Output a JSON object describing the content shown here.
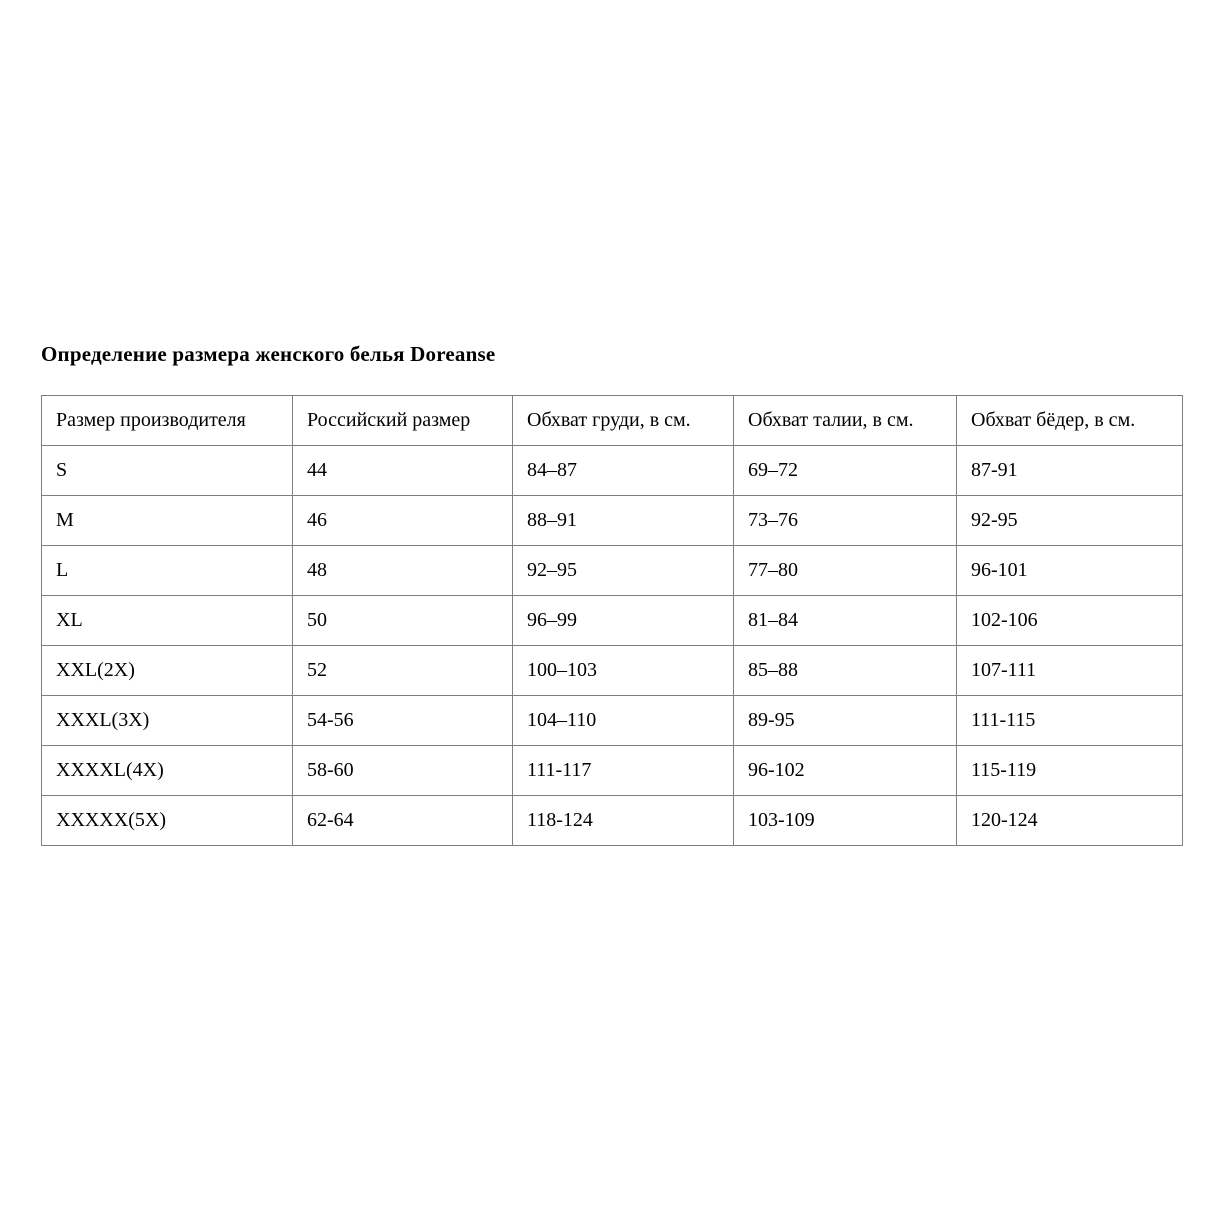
{
  "page": {
    "title": "Определение размера женского белья Doreanse"
  },
  "table": {
    "border_color": "#7f7f7f",
    "columns": [
      "Размер производителя",
      "Российский размер",
      "Обхват груди, в см.",
      "Обхват талии, в см.",
      "Обхват бёдер, в см."
    ],
    "rows": [
      [
        "S",
        "44",
        "84–87",
        "69–72",
        "87-91"
      ],
      [
        "M",
        "46",
        "88–91",
        "73–76",
        "92-95"
      ],
      [
        "L",
        "48",
        "92–95",
        "77–80",
        "96-101"
      ],
      [
        "XL",
        "50",
        "96–99",
        "81–84",
        "102-106"
      ],
      [
        "XXL(2X)",
        "52",
        "100–103",
        "85–88",
        "107-111"
      ],
      [
        "XXXL(3X)",
        "54-56",
        "104–110",
        "89-95",
        "111-115"
      ],
      [
        "XXXXL(4X)",
        "58-60",
        "111-117",
        "96-102",
        "115-119"
      ],
      [
        "XXXXX(5X)",
        "62-64",
        "118-124",
        "103-109",
        "120-124"
      ]
    ]
  }
}
